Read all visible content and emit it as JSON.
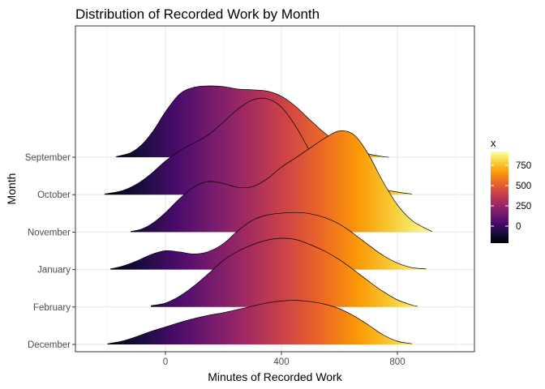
{
  "chart_data": {
    "type": "area",
    "subtype": "ridgeline",
    "title": "Distribution of Recorded Work by Month",
    "xlabel": "Minutes of Recorded Work",
    "ylabel": "Month",
    "xlim": [
      -310,
      1050
    ],
    "x_ticks": [
      0,
      400,
      800
    ],
    "grid": true,
    "categories": [
      "December",
      "February",
      "January",
      "November",
      "October",
      "September"
    ],
    "series": [
      {
        "name": "December",
        "x": [
          -200,
          -150,
          -100,
          -50,
          0,
          50,
          100,
          150,
          200,
          250,
          300,
          350,
          400,
          450,
          500,
          550,
          600,
          650,
          700,
          750,
          800,
          850
        ],
        "density": [
          0.01,
          0.05,
          0.12,
          0.2,
          0.27,
          0.34,
          0.4,
          0.45,
          0.49,
          0.54,
          0.59,
          0.64,
          0.67,
          0.68,
          0.66,
          0.62,
          0.55,
          0.44,
          0.3,
          0.15,
          0.05,
          0.01
        ]
      },
      {
        "name": "February",
        "x": [
          -50,
          0,
          50,
          100,
          150,
          200,
          250,
          300,
          350,
          400,
          450,
          500,
          550,
          600,
          650,
          700,
          750,
          800,
          850,
          870
        ],
        "density": [
          0.02,
          0.06,
          0.17,
          0.33,
          0.52,
          0.72,
          0.86,
          0.96,
          1.03,
          1.06,
          1.04,
          0.96,
          0.86,
          0.73,
          0.57,
          0.4,
          0.24,
          0.11,
          0.03,
          0.01
        ]
      },
      {
        "name": "January",
        "x": [
          -190,
          -150,
          -100,
          -50,
          0,
          50,
          100,
          150,
          200,
          250,
          300,
          350,
          400,
          450,
          500,
          550,
          600,
          650,
          700,
          750,
          800,
          850,
          900
        ],
        "density": [
          0.01,
          0.05,
          0.13,
          0.23,
          0.29,
          0.27,
          0.24,
          0.28,
          0.4,
          0.6,
          0.76,
          0.84,
          0.87,
          0.88,
          0.86,
          0.8,
          0.7,
          0.55,
          0.38,
          0.22,
          0.1,
          0.03,
          0.01
        ]
      },
      {
        "name": "November",
        "x": [
          -120,
          -80,
          -40,
          0,
          50,
          100,
          150,
          200,
          250,
          300,
          350,
          400,
          450,
          500,
          550,
          600,
          650,
          700,
          750,
          800,
          850,
          900,
          920
        ],
        "density": [
          0.01,
          0.05,
          0.15,
          0.3,
          0.52,
          0.7,
          0.78,
          0.75,
          0.69,
          0.7,
          0.82,
          1.0,
          1.15,
          1.3,
          1.45,
          1.56,
          1.5,
          1.2,
          0.78,
          0.42,
          0.18,
          0.05,
          0.01
        ]
      },
      {
        "name": "October",
        "x": [
          -210,
          -150,
          -100,
          -50,
          0,
          50,
          100,
          150,
          200,
          250,
          300,
          350,
          400,
          450,
          500,
          550,
          600,
          650,
          700,
          750,
          800,
          850
        ],
        "density": [
          0.01,
          0.06,
          0.16,
          0.32,
          0.52,
          0.68,
          0.8,
          0.93,
          1.12,
          1.32,
          1.46,
          1.48,
          1.35,
          1.05,
          0.66,
          0.36,
          0.24,
          0.18,
          0.13,
          0.08,
          0.04,
          0.01
        ]
      },
      {
        "name": "September",
        "x": [
          -170,
          -120,
          -80,
          -40,
          0,
          50,
          100,
          150,
          200,
          250,
          300,
          350,
          400,
          450,
          500,
          550,
          600,
          650,
          700,
          750,
          770
        ],
        "density": [
          0.01,
          0.07,
          0.2,
          0.42,
          0.7,
          0.98,
          1.08,
          1.1,
          1.09,
          1.05,
          1.04,
          1.02,
          0.94,
          0.78,
          0.57,
          0.37,
          0.22,
          0.12,
          0.05,
          0.01,
          0.0
        ]
      }
    ],
    "color_scale": {
      "name": "x",
      "palette": "inferno",
      "range": [
        -210,
        920
      ],
      "breaks": [
        0,
        250,
        500,
        750
      ],
      "colors": [
        "#000004",
        "#1b0c41",
        "#4a0c6b",
        "#781c6d",
        "#a52c60",
        "#cf4446",
        "#ed6925",
        "#fb9b06",
        "#f7d13d",
        "#fcffa4"
      ]
    }
  }
}
